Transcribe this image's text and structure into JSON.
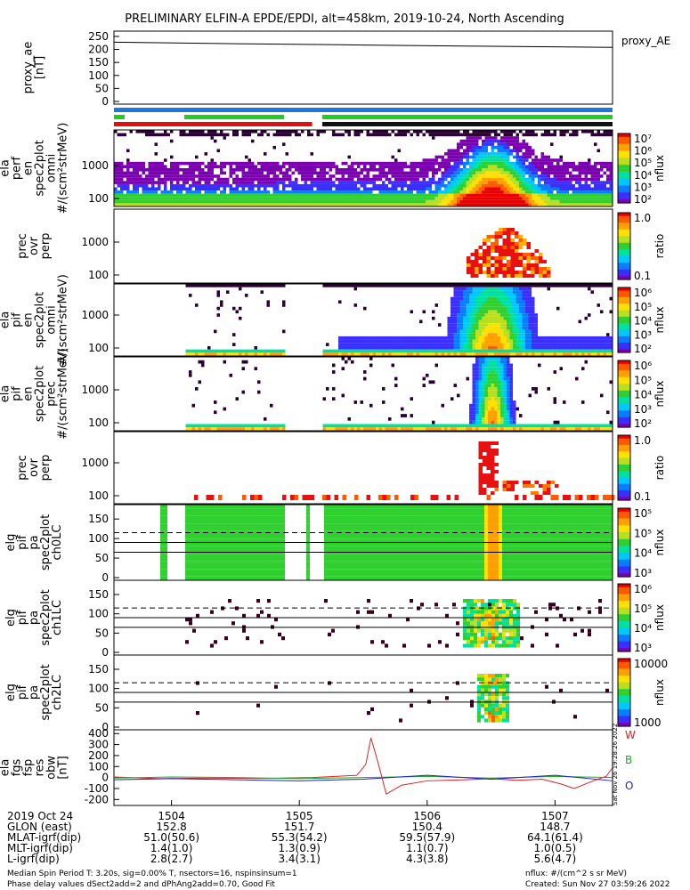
{
  "title": "PRELIMINARY ELFIN-A EPDE/EPDI, alt=458km, 2019-10-24, North Ascending",
  "chart_data": [
    {
      "type": "line",
      "id": "proxy_ae",
      "ylabel": [
        "proxy_ae",
        "[nT]"
      ],
      "yticks": [
        "250",
        "200",
        "150",
        "100",
        "50",
        "0"
      ],
      "ylim": [
        0,
        260
      ],
      "legend": "proxy_AE",
      "series": [
        {
          "name": "proxy_AE",
          "x": [
            1503.55,
            1504.5,
            1505.5,
            1506.5,
            1507.45
          ],
          "values": [
            228,
            222,
            217,
            212,
            208
          ]
        }
      ]
    },
    {
      "type": "heatmap",
      "id": "ela_perf",
      "ylabel": [
        "ela",
        "perf",
        "en",
        "spec2plot",
        "omni",
        "#/(scm²strMeV)"
      ],
      "yticks": [
        "1000",
        "100"
      ],
      "colorbar": {
        "ticks": [
          "10⁷",
          "10⁶",
          "10⁵",
          "10⁴",
          "10³",
          "10²"
        ],
        "label": "nflux"
      }
    },
    {
      "type": "heatmap",
      "id": "ela_ratio1",
      "ylabel": [
        "prec",
        "ovr",
        "perp"
      ],
      "yticks": [
        "1000",
        "100"
      ],
      "colorbar": {
        "ticks": [
          "1.0",
          "0.1"
        ],
        "label": "ratio"
      }
    },
    {
      "type": "heatmap",
      "id": "ela_pif_omni",
      "ylabel": [
        "ela",
        "pif",
        "en",
        "spec2plot",
        "omni",
        "#/(scm²strMeV)"
      ],
      "yticks": [
        "1000",
        "100"
      ],
      "colorbar": {
        "ticks": [
          "10⁶",
          "10⁵",
          "10⁴",
          "10³",
          "10²"
        ],
        "label": "nflux"
      }
    },
    {
      "type": "heatmap",
      "id": "ela_pif_prec",
      "ylabel": [
        "ela",
        "pif",
        "en",
        "spec2plot",
        "prec",
        "#/(scm²strMeV)"
      ],
      "yticks": [
        "1000",
        "100"
      ],
      "colorbar": {
        "ticks": [
          "10⁶",
          "10⁵",
          "10⁴",
          "10³",
          "10²"
        ],
        "label": "nflux"
      }
    },
    {
      "type": "heatmap",
      "id": "ela_ratio2",
      "ylabel": [
        "prec",
        "ovr",
        "perp"
      ],
      "yticks": [
        "1000",
        "100"
      ],
      "colorbar": {
        "ticks": [
          "1.0",
          "0.1"
        ],
        "label": "ratio"
      }
    },
    {
      "type": "heatmap",
      "id": "elg_pa_ch0",
      "ylabel": [
        "elg",
        "pif",
        "pa",
        "spec2plot",
        "ch0LC"
      ],
      "yticks": [
        "150",
        "100",
        "50",
        "0"
      ],
      "ylim": [
        0,
        180
      ],
      "colorbar": {
        "ticks": [
          "10⁵",
          "10⁵",
          "10⁴",
          "10³"
        ],
        "label": "nflux"
      }
    },
    {
      "type": "heatmap",
      "id": "elg_pa_ch1",
      "ylabel": [
        "elg",
        "pif",
        "pa",
        "spec2plot",
        "ch1LC"
      ],
      "yticks": [
        "150",
        "100",
        "50",
        "0"
      ],
      "ylim": [
        0,
        180
      ],
      "colorbar": {
        "ticks": [
          "10⁶",
          "10⁵",
          "10⁴",
          "10³"
        ],
        "label": "nflux"
      }
    },
    {
      "type": "heatmap",
      "id": "elg_pa_ch2",
      "ylabel": [
        "elg",
        "pif",
        "pa",
        "spec2plot",
        "ch2LC"
      ],
      "yticks": [
        "150",
        "100",
        "50",
        "0"
      ],
      "ylim": [
        0,
        180
      ],
      "colorbar": {
        "ticks": [
          "10000",
          "1000"
        ],
        "label": "nflux"
      }
    },
    {
      "type": "line",
      "id": "ela_fgs",
      "ylabel": [
        "ela",
        "fgs",
        "fsp",
        "res",
        "obw",
        "[nT]"
      ],
      "yticks": [
        "400",
        "300",
        "200",
        "100",
        "0",
        "-100",
        "-200"
      ],
      "ylim": [
        -230,
        410
      ],
      "legend": [
        "W",
        "B",
        "O"
      ],
      "series": [
        {
          "name": "W",
          "color": "#dd2222",
          "x": [
            1503.55,
            1503.9,
            1504.3,
            1504.7,
            1505.1,
            1505.45,
            1505.52,
            1505.56,
            1505.61,
            1505.68,
            1505.8,
            1506.0,
            1506.3,
            1506.5,
            1506.7,
            1506.9,
            1507.05,
            1507.15,
            1507.3,
            1507.4,
            1507.45
          ],
          "values": [
            5,
            -10,
            -5,
            -8,
            0,
            20,
            120,
            360,
            160,
            -150,
            -70,
            -30,
            -20,
            -10,
            -25,
            -15,
            -60,
            -100,
            -30,
            10,
            90
          ]
        },
        {
          "name": "B",
          "color": "#22aa22",
          "x": [
            1503.55,
            1504.0,
            1504.5,
            1505.0,
            1505.5,
            1506.0,
            1506.5,
            1507.0,
            1507.45
          ],
          "values": [
            -5,
            5,
            0,
            -10,
            0,
            10,
            -5,
            10,
            0
          ]
        },
        {
          "name": "O",
          "color": "#2222cc",
          "x": [
            1503.55,
            1504.0,
            1504.5,
            1505.0,
            1505.5,
            1506.0,
            1506.5,
            1507.0,
            1507.45
          ],
          "values": [
            -20,
            -10,
            -20,
            -30,
            -15,
            20,
            -15,
            20,
            -30
          ]
        }
      ]
    }
  ],
  "x_axis": {
    "rows": [
      {
        "label": "2019 Oct 24",
        "values": [
          "1504",
          "1505",
          "1506",
          "1507"
        ]
      },
      {
        "label": "GLON (east)",
        "values": [
          "152.8",
          "151.7",
          "150.4",
          "148.7"
        ]
      },
      {
        "label": "MLAT-igrf(dip)",
        "values": [
          "51.0(50.6)",
          "55.3(54.2)",
          "59.5(57.9)",
          "64.1(61.4)"
        ]
      },
      {
        "label": "MLT-igrf(dip)",
        "values": [
          "1.4(1.0)",
          "1.3(0.9)",
          "1.1(0.7)",
          "1.0(0.5)"
        ]
      },
      {
        "label": "L-igrf(dip)",
        "values": [
          "2.8(2.7)",
          "3.4(3.1)",
          "4.3(3.8)",
          "5.6(4.7)"
        ]
      }
    ]
  },
  "footer": {
    "line1": "Median Spin Period T: 3.20s, sig=0.00% T, nsectors=16, nspinsinsum=1",
    "line2": "Phase delay values dSect2add=2 and dPhAng2add=0.70, Good Fit",
    "units": "nflux: #/(cm^2 s sr MeV)",
    "created": "Created: Sun Nov 27 03:59:26 2022",
    "side_stamp": "Sat Nov 26 19:28:26 2022"
  }
}
